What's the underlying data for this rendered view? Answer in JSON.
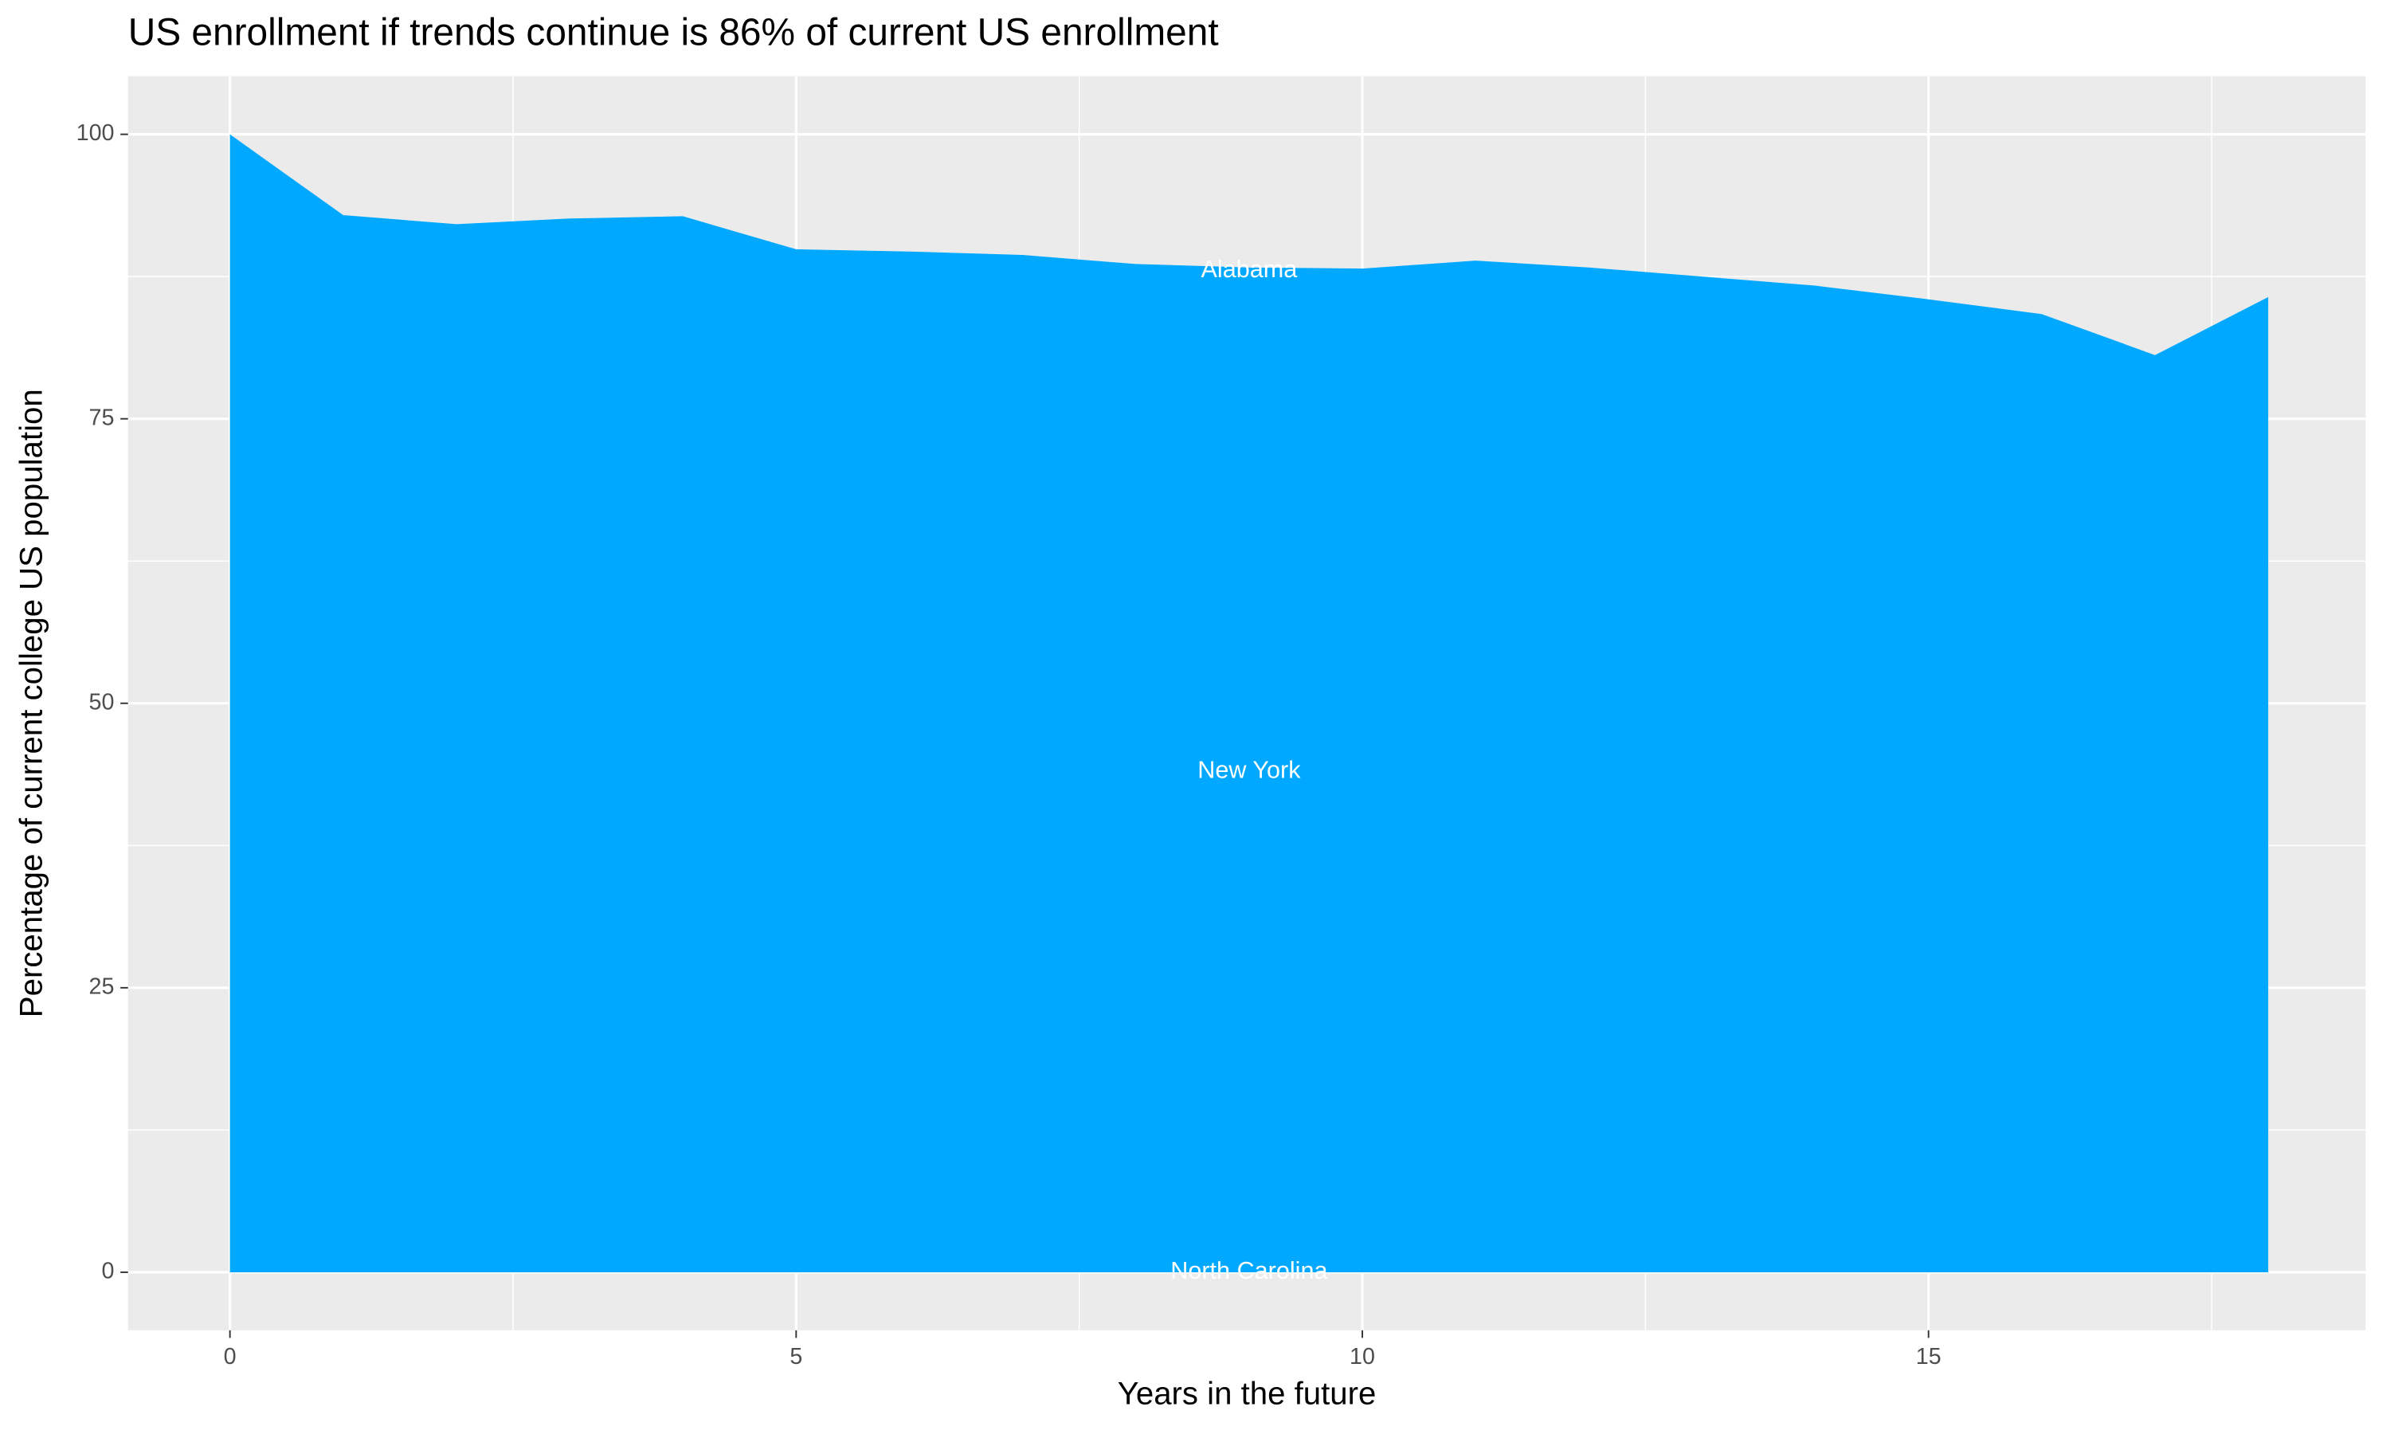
{
  "chart_data": {
    "type": "area",
    "title": "US enrollment if trends continue is 86% of current US enrollment",
    "xlabel": "Years in the future",
    "ylabel": "Percentage of current college US population",
    "x": [
      0,
      1,
      2,
      3,
      4,
      5,
      6,
      7,
      8,
      9,
      10,
      11,
      12,
      13,
      14,
      15,
      16,
      17,
      18
    ],
    "values": [
      100,
      92.9,
      92.1,
      92.6,
      92.8,
      89.9,
      89.7,
      89.4,
      88.6,
      88.3,
      88.2,
      88.9,
      88.3,
      87.5,
      86.7,
      85.5,
      84.2,
      80.6,
      85.7
    ],
    "color": "#00A9FF",
    "xlim": [
      -0.9,
      18.86
    ],
    "ylim": [
      -5.1,
      105.1
    ],
    "xticks": [
      0,
      5,
      10,
      15
    ],
    "yticks": [
      0,
      25,
      50,
      75,
      100
    ],
    "grid": true,
    "annotations": [
      {
        "text": "Alabama",
        "x": 9,
        "y": 88
      },
      {
        "text": "New York",
        "x": 9,
        "y": 44
      },
      {
        "text": "North Carolina",
        "x": 9,
        "y": 0
      }
    ]
  }
}
